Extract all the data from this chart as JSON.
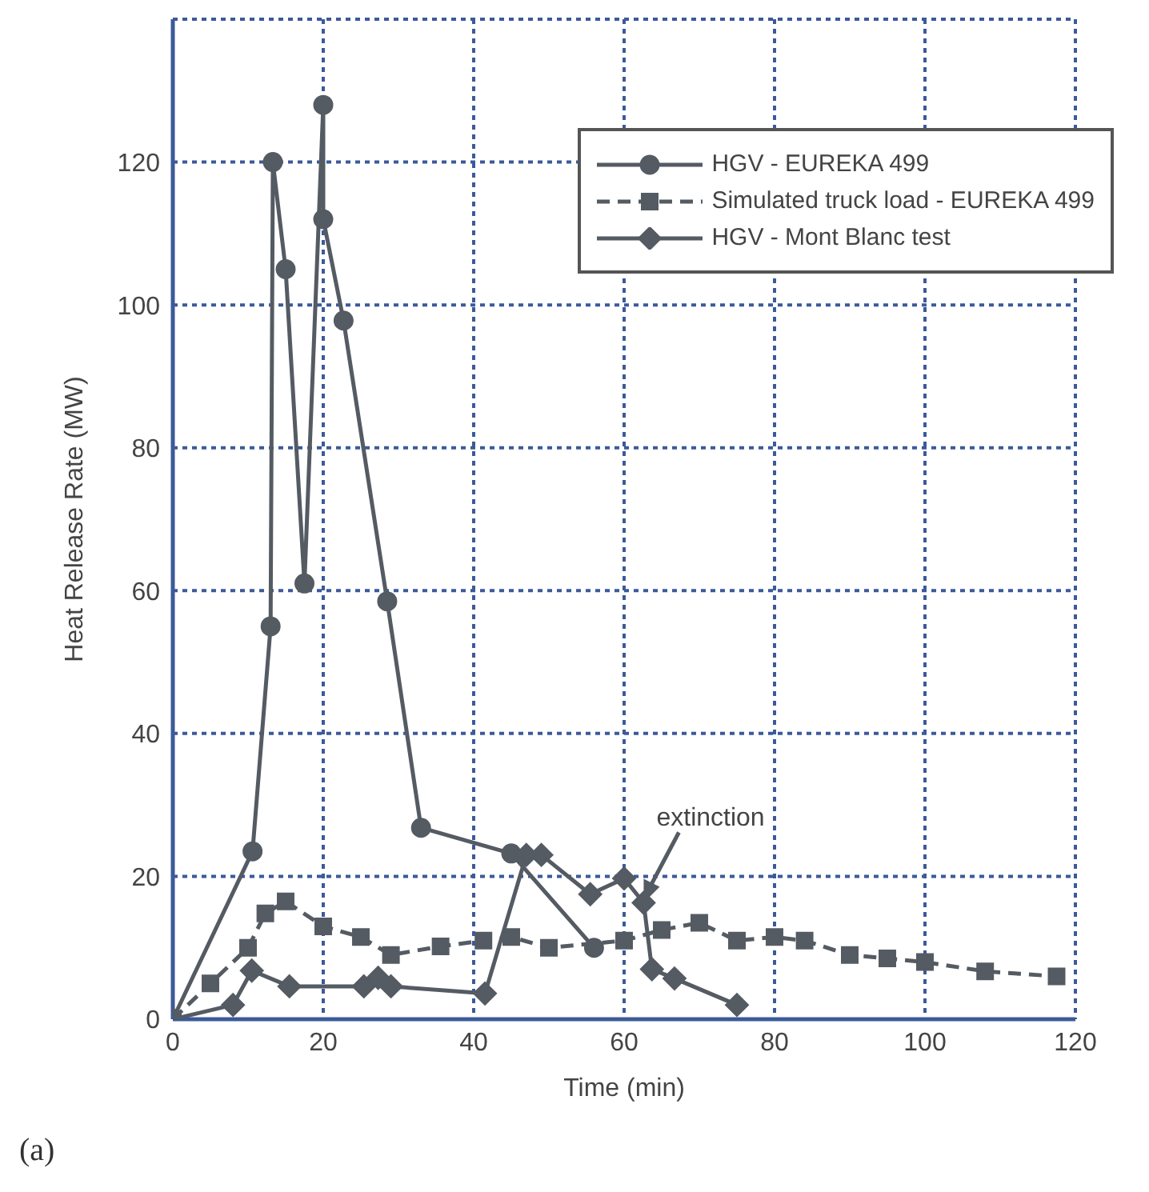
{
  "chart_data": {
    "type": "line",
    "xlabel": "Time (min)",
    "ylabel": "Heat Release Rate (MW)",
    "xlim": [
      0,
      120
    ],
    "xticks": [
      0,
      20,
      40,
      60,
      80,
      100,
      120
    ],
    "ylim": [
      0,
      140
    ],
    "yticks": [
      0,
      20,
      40,
      60,
      80,
      100,
      120
    ],
    "grid": true,
    "legend": "top right",
    "annotations": [
      {
        "text": "extinction",
        "x": 62.6,
        "y": 16.3
      },
      "(a)"
    ],
    "series": [
      {
        "name": "HGV - EUREKA 499",
        "color": "#555b63",
        "marker": "circle",
        "line_style": "solid",
        "x": [
          0,
          8,
          10.6,
          13,
          13.3,
          15,
          17.5,
          20,
          20,
          22.7,
          28.5,
          33,
          45,
          56
        ],
        "values": [
          0,
          null,
          23.5,
          55,
          120,
          105,
          61,
          128,
          112,
          97.8,
          58.5,
          26.8,
          23.2,
          10
        ]
      },
      {
        "name": "Simulated truck load - EUREKA 499",
        "color": "#555b63",
        "marker": "square",
        "line_style": "dashed",
        "x": [
          0,
          5,
          10,
          12.3,
          15,
          20,
          25,
          29,
          35.6,
          41.3,
          45,
          50,
          56,
          60,
          65,
          70,
          75,
          80,
          84,
          90,
          95,
          100,
          108,
          117.5
        ],
        "values": [
          0,
          5,
          10,
          14.8,
          16.5,
          13,
          11.5,
          9,
          10.2,
          11,
          11.5,
          10,
          null,
          11,
          12.5,
          13.5,
          11,
          11.5,
          11,
          9,
          8.5,
          8,
          6.7,
          6
        ]
      },
      {
        "name": "HGV - Mont Blanc test",
        "color": "#555b63",
        "marker": "diamond",
        "line_style": "solid",
        "x": [
          0,
          8,
          10.5,
          15.5,
          25.4,
          27.3,
          29,
          41.5,
          47,
          49,
          55.5,
          60,
          62.6,
          63.7,
          66.7,
          75
        ],
        "values": [
          0,
          2,
          6.8,
          4.6,
          4.6,
          5.8,
          4.6,
          3.6,
          23,
          23,
          17.5,
          19.7,
          16.3,
          7,
          5.7,
          2
        ]
      }
    ]
  }
}
